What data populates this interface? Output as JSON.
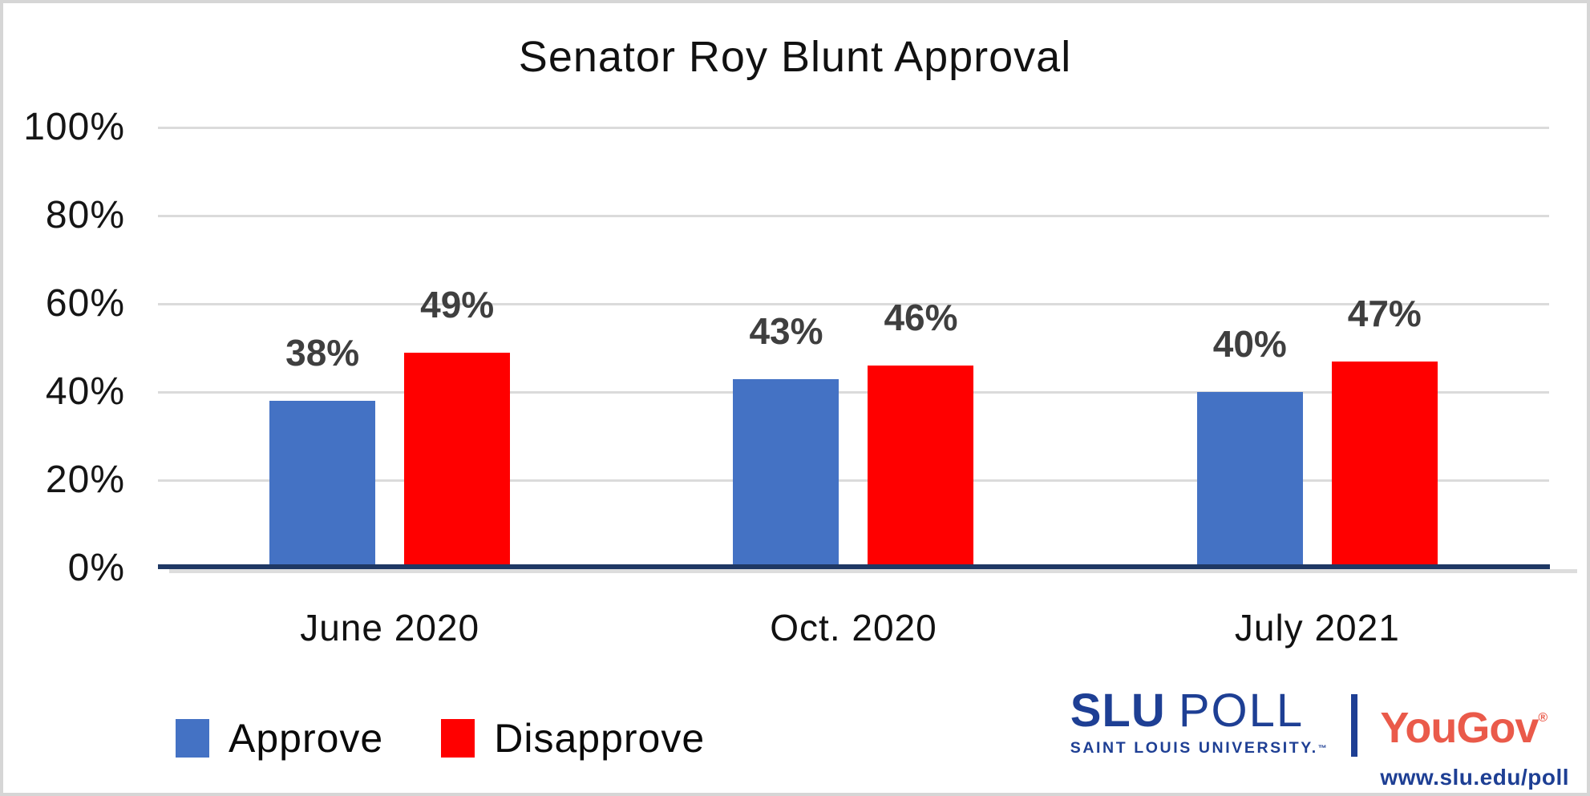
{
  "chart_data": {
    "type": "bar",
    "title": "Senator Roy Blunt Approval",
    "categories": [
      "June 2020",
      "Oct. 2020",
      "July 2021"
    ],
    "series": [
      {
        "name": "Approve",
        "color": "#4472C4",
        "values": [
          38,
          43,
          40
        ]
      },
      {
        "name": "Disapprove",
        "color": "#FF0000",
        "values": [
          49,
          46,
          47
        ]
      }
    ],
    "ylim": [
      0,
      100
    ],
    "yticks": [
      {
        "value": 100,
        "label": "100%"
      },
      {
        "value": 80,
        "label": "80%"
      },
      {
        "value": 60,
        "label": "60%"
      },
      {
        "value": 40,
        "label": "40%"
      },
      {
        "value": 20,
        "label": "20%"
      },
      {
        "value": 0,
        "label": "0%"
      }
    ],
    "value_suffix": "%",
    "grid": true,
    "legend_position": "bottom-left"
  },
  "branding": {
    "slu_bold": "SLU",
    "slu_light": "POLL",
    "slu_subtitle": "SAINT LOUIS UNIVERSITY.",
    "slu_tm": "™",
    "yougov": "YouGov",
    "yougov_reg": "®",
    "url": "www.slu.edu/poll"
  },
  "colors": {
    "slu_blue": "#1E3F94",
    "yougov_red": "#EA5A4A",
    "axis_navy": "#1F3864",
    "grid_gray": "#DBDBDB",
    "value_gray": "#3F3F3F",
    "frame_border": "#D6D6D6"
  }
}
